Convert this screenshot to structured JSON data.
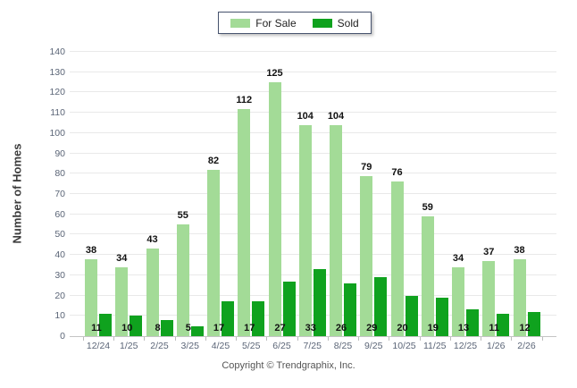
{
  "legend": {
    "items": [
      {
        "label": "For Sale",
        "key": "for-sale"
      },
      {
        "label": "Sold",
        "key": "sold"
      }
    ]
  },
  "y_axis": {
    "title": "Number of Homes"
  },
  "footer": {
    "copyright": "Copyright © Trendgraphix, Inc."
  },
  "chart_data": {
    "type": "bar",
    "title": "",
    "categories": [
      "12/24",
      "1/25",
      "2/25",
      "3/25",
      "4/25",
      "5/25",
      "6/25",
      "7/25",
      "8/25",
      "9/25",
      "10/25",
      "11/25",
      "12/25",
      "1/26",
      "2/26"
    ],
    "series": [
      {
        "name": "For Sale",
        "color": "#A3DB97",
        "values": [
          38,
          34,
          43,
          55,
          82,
          112,
          125,
          104,
          104,
          79,
          76,
          59,
          34,
          37,
          38
        ]
      },
      {
        "name": "Sold",
        "color": "#0FA21E",
        "values": [
          11,
          10,
          8,
          5,
          17,
          17,
          27,
          33,
          26,
          29,
          20,
          19,
          13,
          11,
          12
        ]
      }
    ],
    "xlabel": "",
    "ylabel": "Number of Homes",
    "ylim": [
      0,
      140
    ],
    "ytick_step": 10,
    "grid": "horizontal",
    "legend_position": "top-center",
    "value_labels": {
      "for_sale": "above-bar",
      "sold": "at-bar-base"
    }
  },
  "colors": {
    "for_sale": "#A3DB97",
    "sold": "#0FA21E",
    "gridline": "#e9e9e9",
    "axis_line": "#c4c4c4",
    "tick_label": "#5b6577",
    "value_label": "#111111",
    "legend_border": "#47536e",
    "footer_text": "#555555"
  }
}
